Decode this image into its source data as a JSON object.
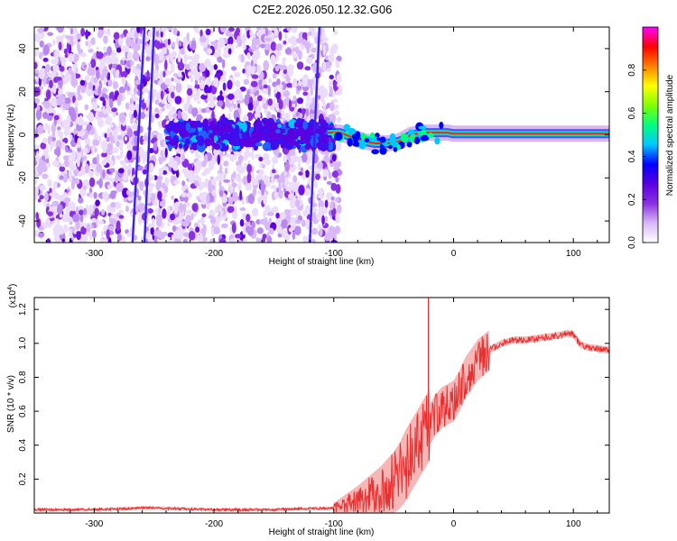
{
  "title": "C2E2.2026.050.12.32.G06",
  "chart_data": [
    {
      "type": "heatmap",
      "xlabel": "Height of straight line (km)",
      "ylabel": "Frequency (Hz)",
      "xlim": [
        -350,
        130
      ],
      "ylim": [
        -50,
        50
      ],
      "x_ticks": [
        -300,
        -200,
        -100,
        0,
        100
      ],
      "y_ticks": [
        -40,
        -20,
        0,
        20,
        40
      ],
      "colorbar": {
        "label": "Normalized spectral amplitude",
        "range": [
          0,
          1
        ],
        "ticks": [
          0.0,
          0.2,
          0.4,
          0.6,
          0.8
        ],
        "colors": [
          "#ffffff",
          "#d8b8f8",
          "#8a30e0",
          "#5a00e0",
          "#0000ff",
          "#00c8ff",
          "#00ff80",
          "#80ff00",
          "#ffff00",
          "#ff8000",
          "#ff0000",
          "#ff00ff"
        ]
      },
      "features": {
        "noise_region_x": [
          -350,
          -95
        ],
        "tone_track": {
          "x": [
            -105,
            -95,
            -85,
            -75,
            -65,
            -55,
            -45,
            -35,
            -25,
            -15,
            -5,
            0,
            130
          ],
          "y": [
            1,
            1,
            -1,
            -3,
            -4,
            -4,
            -3,
            0,
            1,
            1,
            1,
            0.5,
            0.5
          ]
        },
        "slanted_streaks": [
          {
            "x": [
              -268,
              -258
            ],
            "y": [
              -50,
              50
            ]
          },
          {
            "x": [
              -258,
              -250
            ],
            "y": [
              -50,
              50
            ]
          },
          {
            "x": [
              -120,
              -112
            ],
            "y": [
              -50,
              50
            ]
          }
        ]
      }
    },
    {
      "type": "line",
      "xlabel": "Height of straight line (km)",
      "ylabel": "SNR (10 * v/v)",
      "y_multiplier_label": "(x10",
      "y_multiplier_exponent": "4",
      "y_multiplier_close": ")",
      "xlim": [
        -350,
        130
      ],
      "ylim": [
        0,
        1.27
      ],
      "x_ticks": [
        -300,
        -200,
        -100,
        0,
        100
      ],
      "y_ticks": [
        0.2,
        0.4,
        0.6,
        0.8,
        1.0,
        1.2
      ],
      "color": "#e83030",
      "x": [
        -350,
        -300,
        -260,
        -250,
        -200,
        -150,
        -100,
        -90,
        -80,
        -70,
        -60,
        -50,
        -45,
        -40,
        -35,
        -30,
        -25,
        -20,
        -15,
        -10,
        -5,
        0,
        5,
        10,
        20,
        30,
        40,
        50,
        60,
        70,
        80,
        90,
        95,
        100,
        105,
        110,
        120,
        130
      ],
      "y": [
        0.02,
        0.02,
        0.03,
        0.03,
        0.02,
        0.02,
        0.03,
        0.05,
        0.07,
        0.1,
        0.13,
        0.18,
        0.22,
        0.28,
        0.34,
        0.4,
        0.46,
        0.52,
        0.58,
        0.62,
        0.64,
        0.66,
        0.72,
        0.8,
        0.9,
        0.96,
        1.0,
        1.02,
        1.02,
        1.03,
        1.04,
        1.05,
        1.06,
        1.05,
        1.0,
        0.98,
        0.97,
        0.96
      ],
      "spike": {
        "x": -21,
        "y": 1.27
      }
    }
  ]
}
